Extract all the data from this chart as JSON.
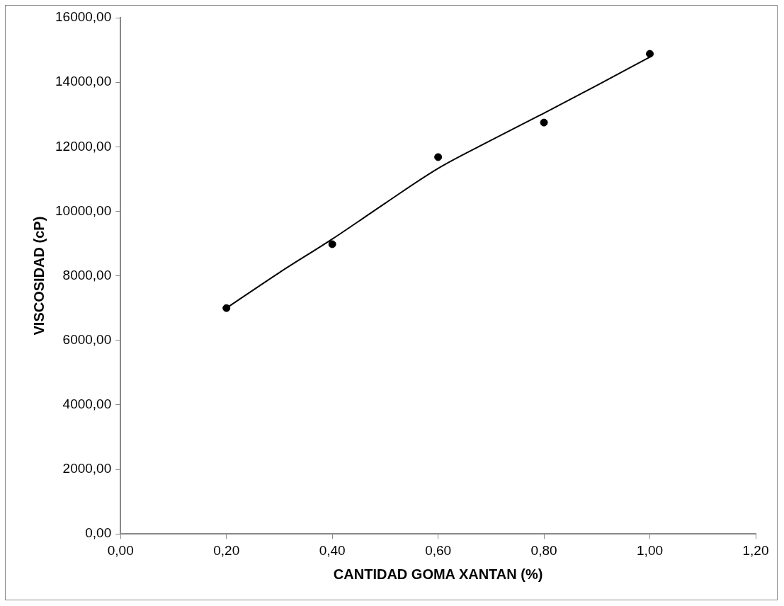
{
  "chart_data": {
    "type": "scatter",
    "xlabel": "CANTIDAD GOMA XANTAN (%)",
    "ylabel": "VISCOSIDAD (cP)",
    "xlim": [
      0,
      1.2
    ],
    "xticks": [
      {
        "value": 0,
        "label": "0,00"
      },
      {
        "value": 0.2,
        "label": "0,20"
      },
      {
        "value": 0.4,
        "label": "0,40"
      },
      {
        "value": 0.6,
        "label": "0,60"
      },
      {
        "value": 0.8,
        "label": "0,80"
      },
      {
        "value": 1,
        "label": "1,00"
      },
      {
        "value": 1.2,
        "label": "1,20"
      }
    ],
    "ylim": [
      0,
      16000
    ],
    "yticks": [
      {
        "value": 0,
        "label": "0,00"
      },
      {
        "value": 2000,
        "label": "2000,00"
      },
      {
        "value": 4000,
        "label": "4000,00"
      },
      {
        "value": 6000,
        "label": "6000,00"
      },
      {
        "value": 8000,
        "label": "8000,00"
      },
      {
        "value": 10000,
        "label": "10000,00"
      },
      {
        "value": 12000,
        "label": "12000,00"
      },
      {
        "value": 14000,
        "label": "14000,00"
      },
      {
        "value": 16000,
        "label": "16000,00"
      }
    ],
    "grid": false,
    "legend": false,
    "series": [
      {
        "type": "scatter",
        "marker": "circle",
        "color": "#000000",
        "x": [
          0.2,
          0.4,
          0.6,
          0.8,
          1.0
        ],
        "values": [
          7000,
          8980,
          11680,
          12750,
          14880
        ]
      },
      {
        "type": "line",
        "marker": "none",
        "line_style": "solid",
        "color": "#000000",
        "x": [
          0.2,
          0.3,
          0.4,
          0.5,
          0.6,
          0.7,
          0.8,
          0.9,
          1.0
        ],
        "values": [
          7000,
          8100,
          9140,
          10250,
          11330,
          12200,
          13040,
          13900,
          14780
        ]
      }
    ]
  }
}
